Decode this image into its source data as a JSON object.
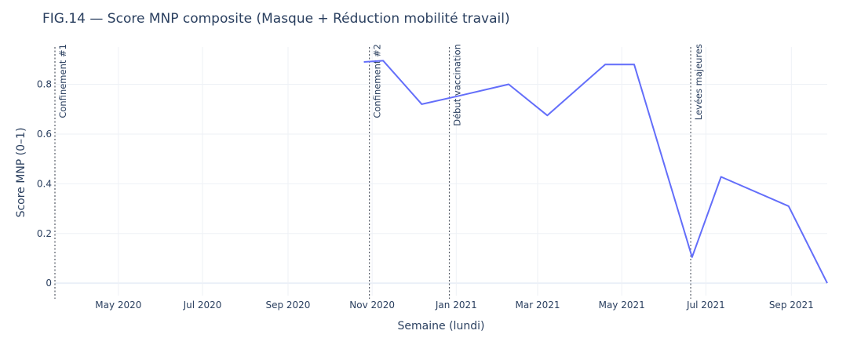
{
  "chart_data": {
    "type": "line",
    "title": "FIG.14 — Score MNP composite (Masque + Réduction mobilité travail)",
    "xlabel": "Semaine (lundi)",
    "ylabel": "Score MNP (0–1)",
    "x_range": [
      "2020-03-16",
      "2021-09-27"
    ],
    "ylim": [
      -0.05,
      0.95
    ],
    "x_ticks": [
      {
        "date": "2020-05-01",
        "label": "May 2020"
      },
      {
        "date": "2020-07-01",
        "label": "Jul 2020"
      },
      {
        "date": "2020-09-01",
        "label": "Sep 2020"
      },
      {
        "date": "2020-11-01",
        "label": "Nov 2020"
      },
      {
        "date": "2021-01-01",
        "label": "Jan 2021"
      },
      {
        "date": "2021-03-01",
        "label": "Mar 2021"
      },
      {
        "date": "2021-05-01",
        "label": "May 2021"
      },
      {
        "date": "2021-07-01",
        "label": "Jul 2021"
      },
      {
        "date": "2021-09-01",
        "label": "Sep 2021"
      }
    ],
    "y_ticks": [
      {
        "value": 0,
        "label": "0"
      },
      {
        "value": 0.2,
        "label": "0.2"
      },
      {
        "value": 0.4,
        "label": "0.4"
      },
      {
        "value": 0.6,
        "label": "0.6"
      },
      {
        "value": 0.8,
        "label": "0.8"
      }
    ],
    "grid": true,
    "series": [
      {
        "color": "#636efa",
        "x": [
          "2020-10-26",
          "2020-11-09",
          "2020-12-07",
          "2021-01-04",
          "2021-02-08",
          "2021-03-08",
          "2021-04-19",
          "2021-05-10",
          "2021-06-21",
          "2021-07-12",
          "2021-08-30",
          "2021-09-27"
        ],
        "values": [
          0.89,
          0.895,
          0.72,
          0.755,
          0.8,
          0.675,
          0.88,
          0.88,
          0.105,
          0.428,
          0.31,
          0.0
        ]
      }
    ],
    "annotations": [
      {
        "date": "2020-03-16",
        "label": "Confinement #1"
      },
      {
        "date": "2020-10-30",
        "label": "Confinement #2"
      },
      {
        "date": "2020-12-27",
        "label": "Début vaccination"
      },
      {
        "date": "2021-06-20",
        "label": "Levées majeures"
      }
    ]
  }
}
